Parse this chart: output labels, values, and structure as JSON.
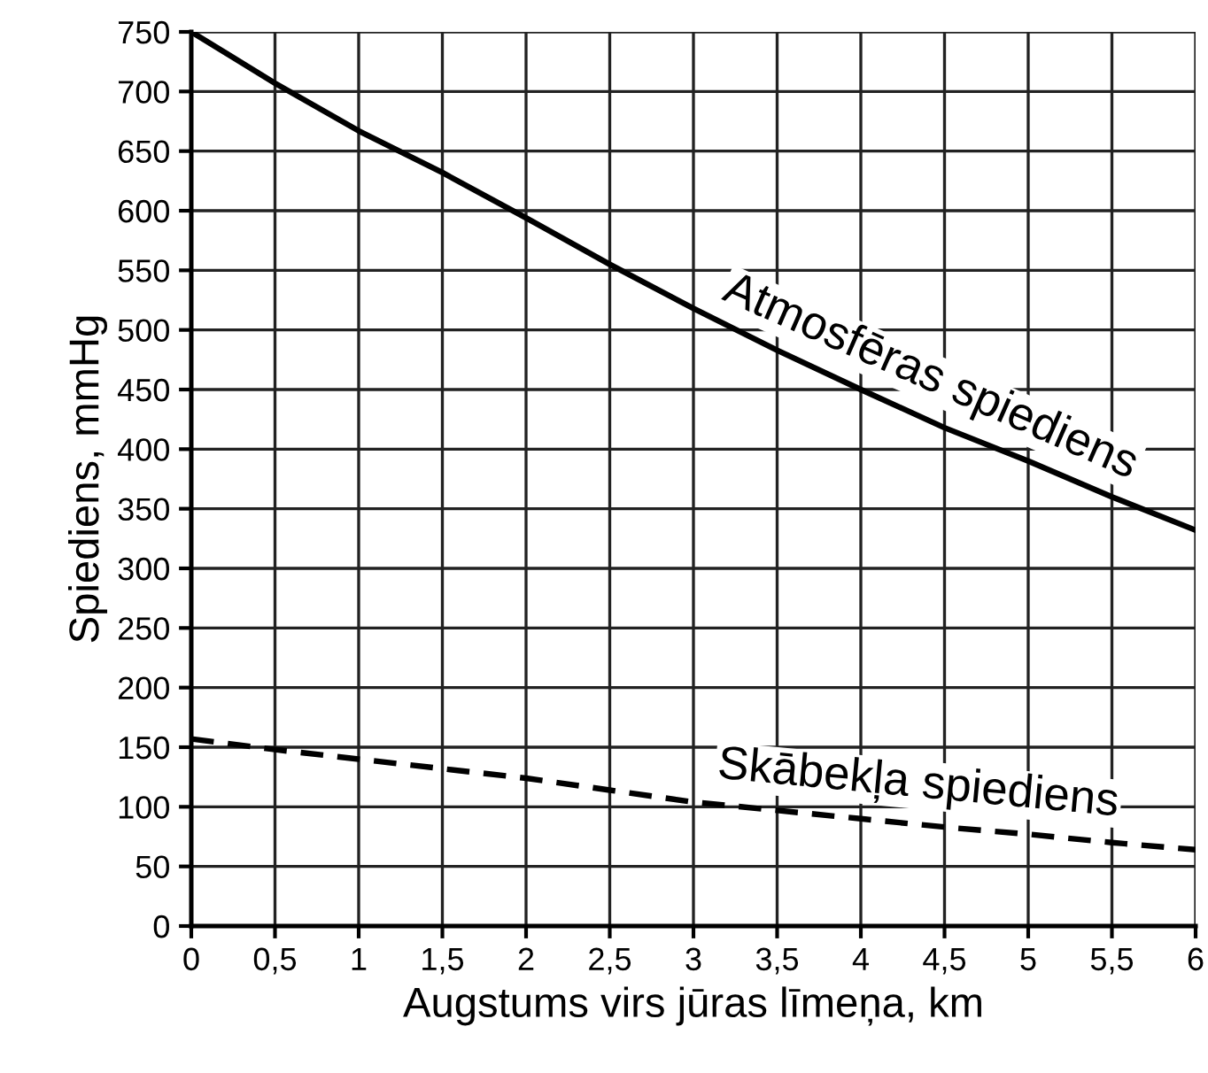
{
  "chart_data": {
    "type": "line",
    "xlabel": "Augstums virs jūras līmeņa, km",
    "ylabel": "Spiediens, mmHg",
    "x": [
      0,
      0.5,
      1,
      1.5,
      2,
      2.5,
      3,
      3.5,
      4,
      4.5,
      5,
      5.5,
      6
    ],
    "series": [
      {
        "color": "#000000",
        "line_style": "solid",
        "values": [
          750,
          707,
          667,
          632,
          594,
          555,
          518,
          483,
          450,
          418,
          390,
          360,
          332
        ]
      },
      {
        "color": "#000000",
        "line_style": "dashed",
        "values": [
          157,
          148,
          140,
          132,
          124,
          114,
          104,
          97,
          90,
          83,
          77,
          70,
          64
        ]
      }
    ],
    "annotations": [
      "Atmosfēras spiediens",
      "Skābekļa spiediens"
    ],
    "xlim": [
      0,
      6
    ],
    "ylim": [
      0,
      750
    ],
    "xticks": [
      0,
      {
        "value": 0.5,
        "label": "0,5"
      },
      1,
      {
        "value": 1.5,
        "label": "1,5"
      },
      2,
      {
        "value": 2.5,
        "label": "2,5"
      },
      3,
      {
        "value": 3.5,
        "label": "3,5"
      },
      4,
      {
        "value": 4.5,
        "label": "4,5"
      },
      5,
      {
        "value": 5.5,
        "label": "5,5"
      },
      6
    ],
    "yticks": [
      0,
      50,
      100,
      150,
      200,
      250,
      300,
      350,
      400,
      450,
      500,
      550,
      600,
      650,
      700,
      750
    ],
    "grid": true,
    "legend": false,
    "marker": "none"
  }
}
